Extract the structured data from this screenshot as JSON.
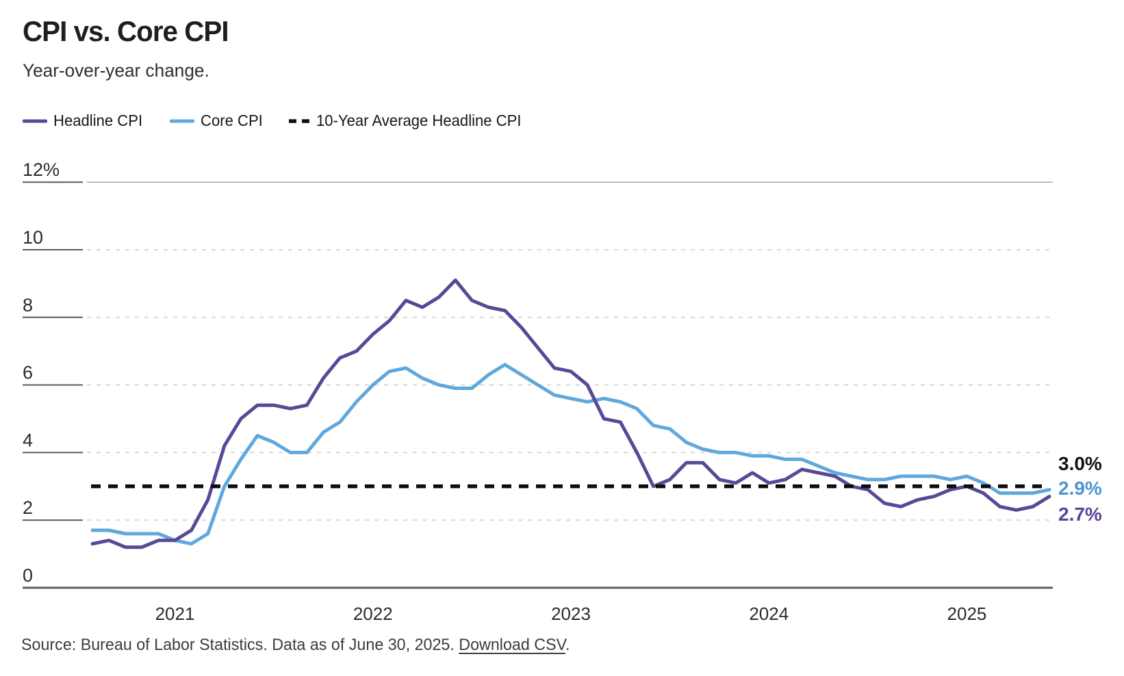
{
  "header": {
    "title": "CPI vs. Core CPI",
    "subtitle": "Year-over-year change."
  },
  "legend": {
    "items": [
      {
        "label": "Headline CPI",
        "color": "#564A96",
        "style": "solid"
      },
      {
        "label": "Core CPI",
        "color": "#5FA8DC",
        "style": "solid"
      },
      {
        "label": "10-Year Average Headline CPI",
        "color": "#111111",
        "style": "dashed"
      }
    ]
  },
  "chart_data": {
    "type": "line",
    "title": "CPI vs. Core CPI",
    "subtitle": "Year-over-year change.",
    "unit": "%",
    "x": [
      "2020-08",
      "2020-09",
      "2020-10",
      "2020-11",
      "2020-12",
      "2021-01",
      "2021-02",
      "2021-03",
      "2021-04",
      "2021-05",
      "2021-06",
      "2021-07",
      "2021-08",
      "2021-09",
      "2021-10",
      "2021-11",
      "2021-12",
      "2022-01",
      "2022-02",
      "2022-03",
      "2022-04",
      "2022-05",
      "2022-06",
      "2022-07",
      "2022-08",
      "2022-09",
      "2022-10",
      "2022-11",
      "2022-12",
      "2023-01",
      "2023-02",
      "2023-03",
      "2023-04",
      "2023-05",
      "2023-06",
      "2023-07",
      "2023-08",
      "2023-09",
      "2023-10",
      "2023-11",
      "2023-12",
      "2024-01",
      "2024-02",
      "2024-03",
      "2024-04",
      "2024-05",
      "2024-06",
      "2024-07",
      "2024-08",
      "2024-09",
      "2024-10",
      "2024-11",
      "2024-12",
      "2025-01",
      "2025-02",
      "2025-03",
      "2025-04",
      "2025-05",
      "2025-06"
    ],
    "series": [
      {
        "name": "Headline CPI",
        "color": "#564A96",
        "values": [
          1.3,
          1.4,
          1.2,
          1.2,
          1.4,
          1.4,
          1.7,
          2.6,
          4.2,
          5.0,
          5.4,
          5.4,
          5.3,
          5.4,
          6.2,
          6.8,
          7.0,
          7.5,
          7.9,
          8.5,
          8.3,
          8.6,
          9.1,
          8.5,
          8.3,
          8.2,
          7.7,
          7.1,
          6.5,
          6.4,
          6.0,
          5.0,
          4.9,
          4.0,
          3.0,
          3.2,
          3.7,
          3.7,
          3.2,
          3.1,
          3.4,
          3.1,
          3.2,
          3.5,
          3.4,
          3.3,
          3.0,
          2.9,
          2.5,
          2.4,
          2.6,
          2.7,
          2.9,
          3.0,
          2.8,
          2.4,
          2.3,
          2.4,
          2.7
        ]
      },
      {
        "name": "Core CPI",
        "color": "#5FA8DC",
        "values": [
          1.7,
          1.7,
          1.6,
          1.6,
          1.6,
          1.4,
          1.3,
          1.6,
          3.0,
          3.8,
          4.5,
          4.3,
          4.0,
          4.0,
          4.6,
          4.9,
          5.5,
          6.0,
          6.4,
          6.5,
          6.2,
          6.0,
          5.9,
          5.9,
          6.3,
          6.6,
          6.3,
          6.0,
          5.7,
          5.6,
          5.5,
          5.6,
          5.5,
          5.3,
          4.8,
          4.7,
          4.3,
          4.1,
          4.0,
          4.0,
          3.9,
          3.9,
          3.8,
          3.8,
          3.6,
          3.4,
          3.3,
          3.2,
          3.2,
          3.3,
          3.3,
          3.3,
          3.2,
          3.3,
          3.1,
          2.8,
          2.8,
          2.8,
          2.9
        ]
      }
    ],
    "reference_line": {
      "name": "10-Year Average Headline CPI",
      "value": 3.0,
      "color": "#0d0d0d",
      "style": "dashed"
    },
    "y_ticks": [
      0,
      2,
      4,
      6,
      8,
      10,
      12
    ],
    "y_tick_suffix_top": "%",
    "ylim": [
      0,
      12
    ],
    "x_tick_labels": [
      "2021",
      "2022",
      "2023",
      "2024",
      "2025"
    ],
    "grid": "horizontal-dashed",
    "legend_position": "top-left",
    "end_labels": [
      {
        "text": "3.0%",
        "color": "#111111",
        "series": "10-Year Average Headline CPI"
      },
      {
        "text": "2.9%",
        "color": "#4E95CE",
        "series": "Core CPI"
      },
      {
        "text": "2.7%",
        "color": "#5B4397",
        "series": "Headline CPI"
      }
    ]
  },
  "footer": {
    "source_text": "Source: Bureau of Labor Statistics. Data as of June 30, 2025. ",
    "download_label": "Download CSV",
    "after_link": "."
  }
}
